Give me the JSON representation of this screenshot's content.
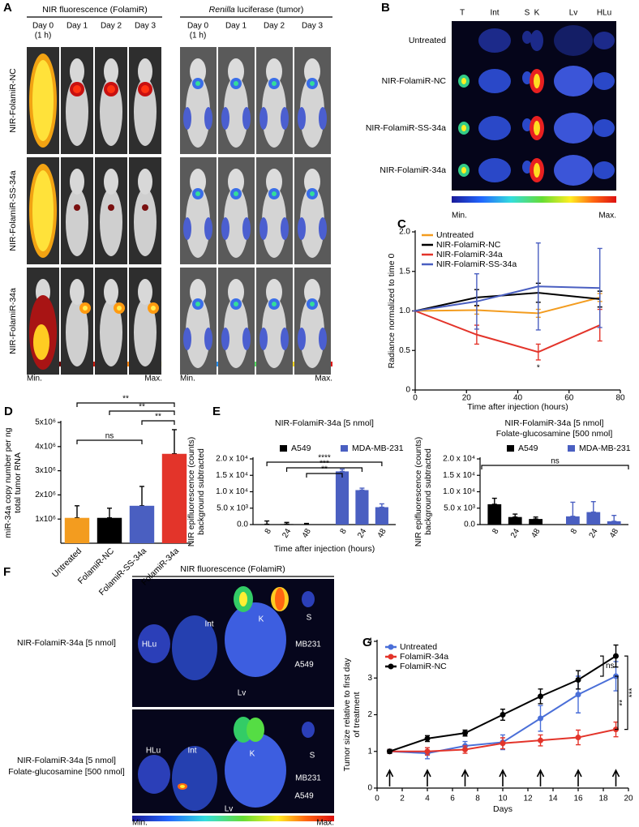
{
  "figure": {
    "A": {
      "letter": "A",
      "header_left": "NIR fluorescence (FolamiR)",
      "header_right_italic": "Renilla",
      "header_right": " luciferase (tumor)",
      "days": [
        "Day 0",
        "Day 1",
        "Day 2",
        "Day 3"
      ],
      "day0_note": "(1 h)",
      "rows": [
        "NIR-FolamiR-NC",
        "NIR-FolamiR-SS-34a",
        "NIR-FolamiR-34a"
      ],
      "scale": [
        "Min.",
        "Max."
      ]
    },
    "B": {
      "letter": "B",
      "organs": [
        "T",
        "Int",
        "S",
        "K",
        "Lv",
        "HLu"
      ],
      "rows": [
        "Untreated",
        "NIR-FolamiR-NC",
        "NIR-FolamiR-SS-34a",
        "NIR-FolamiR-34a"
      ],
      "scale": [
        "Min.",
        "Max."
      ]
    },
    "F": {
      "letter": "F",
      "header": "NIR fluorescence (FolamiR)",
      "rows": [
        [
          "NIR-FolamiR-34a [5 nmol]"
        ],
        [
          "NIR-FolamiR-34a [5 nmol]",
          "Folate-glucosamine [500 nmol]"
        ]
      ],
      "labels_top": [
        "Int",
        "K",
        "S",
        "HLu",
        "MB231",
        "A549",
        "Lv"
      ],
      "labels_bottom": [
        "HLu",
        "Int",
        "K",
        "S",
        "MB231",
        "A549",
        "Lv"
      ],
      "scale": [
        "Min.",
        "Max."
      ]
    }
  },
  "chart_data": [
    {
      "type": "line",
      "panel": "C",
      "xlabel": "Time after injection (hours)",
      "ylabel": [
        "Radiance normalized to time 0"
      ],
      "x": [
        0,
        24,
        48,
        72
      ],
      "xlim": [
        0,
        80
      ],
      "xticks": [
        0,
        20,
        40,
        60,
        80
      ],
      "ylim": [
        0,
        2
      ],
      "yticks": [
        0,
        0.5,
        {
          "value": 1,
          "label": "1.0"
        },
        1.5,
        {
          "value": 2,
          "label": "2.0"
        }
      ],
      "annotations": [
        "*"
      ],
      "series": [
        {
          "name": "Untreated",
          "color": "#f39c1f",
          "values": [
            1,
            1.01,
            0.97,
            1.17
          ],
          "errors": [
            0,
            0.05,
            0.05,
            0.05
          ]
        },
        {
          "name": "NIR-FolamiR-NC",
          "color": "#000000",
          "values": [
            1,
            1.17,
            1.23,
            1.15
          ],
          "errors": [
            0,
            0.1,
            0.12,
            0.1
          ]
        },
        {
          "name": "NIR-FolamiR-34a",
          "color": "#e3342a",
          "values": [
            1,
            0.7,
            0.48,
            0.82
          ],
          "errors": [
            0,
            0.12,
            0.1,
            0.2
          ]
        },
        {
          "name": "NIR-FolamiR-SS-34a",
          "color": "#4a5fc1",
          "values": [
            1,
            1.12,
            1.31,
            1.29
          ],
          "errors": [
            0,
            0.35,
            0.55,
            0.5
          ]
        }
      ]
    },
    {
      "type": "bar",
      "panel": "D",
      "ylabel": [
        "miR-34a copy number per ng",
        "total tumor RNA"
      ],
      "categories": [
        "Untreated",
        "FolamiR-NC",
        "FolamiR-SS-34a",
        "FolamiR-34a"
      ],
      "values": [
        1050000,
        1050000,
        1550000,
        3700000
      ],
      "errors": [
        500000,
        400000,
        800000,
        1000000
      ],
      "colors": [
        "#f39c1f",
        "#000000",
        "#4a5fc1",
        "#e3342a"
      ],
      "ylim": [
        0,
        5000000
      ],
      "yticks": [
        {
          "value": 1000000,
          "label": "1x10⁶"
        },
        {
          "value": 2000000,
          "label": "2x10⁶"
        },
        {
          "value": 3000000,
          "label": "3x10⁶"
        },
        {
          "value": 4000000,
          "label": "4x10⁶"
        },
        {
          "value": 5000000,
          "label": "5x10⁶"
        }
      ],
      "annotations": [
        "**",
        "**",
        "**",
        "ns"
      ]
    },
    {
      "type": "bar",
      "panel": "E",
      "title": [
        "NIR-FolamiR-34a [5 nmol]"
      ],
      "xlabel": "Time after injection (hours)",
      "ylabel": [
        "NIR epifluorescence (counts)",
        "background subtracted"
      ],
      "categories": [
        "8",
        "24",
        "48"
      ],
      "series": [
        {
          "name": "A549",
          "color": "#000000",
          "values": [
            100,
            150,
            50
          ],
          "errors": [
            1000,
            500,
            300
          ]
        },
        {
          "name": "MDA-MB-231",
          "color": "#4a5fc1",
          "values": [
            16200,
            10500,
            5300
          ],
          "errors": [
            700,
            600,
            1000
          ]
        }
      ],
      "ylim": [
        0,
        20000
      ],
      "yticks": [
        {
          "value": 0,
          "label": "0.0"
        },
        {
          "value": 5000,
          "label": "5.0 x 10³"
        },
        {
          "value": 10000,
          "label": "1.0 x 10⁴"
        },
        {
          "value": 15000,
          "label": "1.5 x 10⁴"
        },
        {
          "value": 20000,
          "label": "2.0 x 10⁴"
        }
      ],
      "annotations": [
        "****",
        "***",
        "**"
      ]
    },
    {
      "type": "bar",
      "title": [
        "NIR-FolamiR-34a [5 nmol]",
        "Folate-glucosamine [500 nmol]"
      ],
      "ylabel": [
        "NIR epifluorescence (counts)",
        "background subtracted"
      ],
      "categories": [
        "8",
        "24",
        "48"
      ],
      "series": [
        {
          "name": "A549",
          "color": "#000000",
          "values": [
            6200,
            2300,
            1700
          ],
          "errors": [
            1800,
            900,
            600
          ]
        },
        {
          "name": "MDA-MB-231",
          "color": "#4a5fc1",
          "values": [
            2500,
            3800,
            1000
          ],
          "errors": [
            4300,
            3200,
            1800
          ]
        }
      ],
      "ylim": [
        0,
        20000
      ],
      "yticks": [
        {
          "value": 0,
          "label": "0.0"
        },
        {
          "value": 5000,
          "label": "5.0 x 10³"
        },
        {
          "value": 10000,
          "label": "1.0 x 10⁴"
        },
        {
          "value": 15000,
          "label": "1.5 x 10⁴"
        },
        {
          "value": 20000,
          "label": "2.0 x 10⁴"
        }
      ],
      "annotations": [
        "ns"
      ]
    },
    {
      "type": "line",
      "panel": "G",
      "xlabel": "Days",
      "ylabel": [
        "Tumor size relative to first day",
        "of treatment"
      ],
      "x": [
        1,
        4,
        7,
        10,
        13,
        16,
        19
      ],
      "xlim": [
        0,
        20
      ],
      "xticks": [
        0,
        2,
        4,
        6,
        8,
        10,
        12,
        14,
        16,
        18,
        20
      ],
      "ylim": [
        0,
        4
      ],
      "yticks": [
        0,
        1,
        2,
        3,
        4
      ],
      "treatment_days": [
        1,
        4,
        7,
        10,
        13,
        16,
        19
      ],
      "annotations": [
        "ns",
        "**",
        "***"
      ],
      "series": [
        {
          "name": "Untreated",
          "color": "#4a6fd8",
          "marker": "circle",
          "values": [
            1,
            0.95,
            1.15,
            1.25,
            1.9,
            2.55,
            3.05
          ],
          "errors": [
            0.05,
            0.15,
            0.12,
            0.2,
            0.35,
            0.5,
            0.4
          ]
        },
        {
          "name": "FolamiR-34a",
          "color": "#e3342a",
          "marker": "circle",
          "values": [
            1,
            1.0,
            1.05,
            1.22,
            1.3,
            1.38,
            1.6
          ],
          "errors": [
            0.05,
            0.1,
            0.1,
            0.15,
            0.15,
            0.2,
            0.2
          ]
        },
        {
          "name": "FolamiR-NC",
          "color": "#000000",
          "marker": "circle",
          "values": [
            1,
            1.35,
            1.5,
            2.0,
            2.5,
            2.95,
            3.6
          ],
          "errors": [
            0.05,
            0.08,
            0.08,
            0.15,
            0.2,
            0.25,
            0.3
          ]
        }
      ]
    }
  ]
}
